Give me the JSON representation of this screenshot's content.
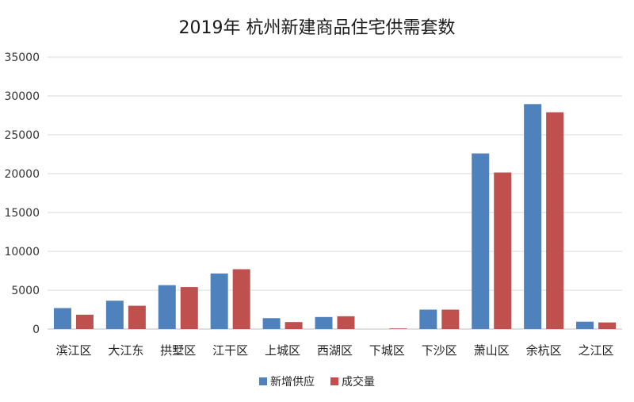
{
  "chart_data": {
    "type": "bar",
    "title": "2019年 杭州新建商品住宅供需套数",
    "categories": [
      "滨江区",
      "大江东",
      "拱墅区",
      "江干区",
      "上城区",
      "西湖区",
      "下城区",
      "下沙区",
      "萧山区",
      "余杭区",
      "之江区"
    ],
    "series": [
      {
        "name": "新增供应",
        "color": "#4f81bd",
        "values": [
          2700,
          3650,
          5650,
          7150,
          1400,
          1550,
          0,
          2500,
          22600,
          28950,
          950
        ]
      },
      {
        "name": "成交量",
        "color": "#c0504d",
        "values": [
          1850,
          3000,
          5400,
          7700,
          900,
          1650,
          80,
          2500,
          20150,
          27900,
          850
        ]
      }
    ],
    "ylim": [
      0,
      35000
    ],
    "yticks": [
      "0",
      "5000",
      "10000",
      "15000",
      "20000",
      "25000",
      "30000",
      "35000"
    ],
    "grid": true,
    "legend": "bottom-center"
  }
}
